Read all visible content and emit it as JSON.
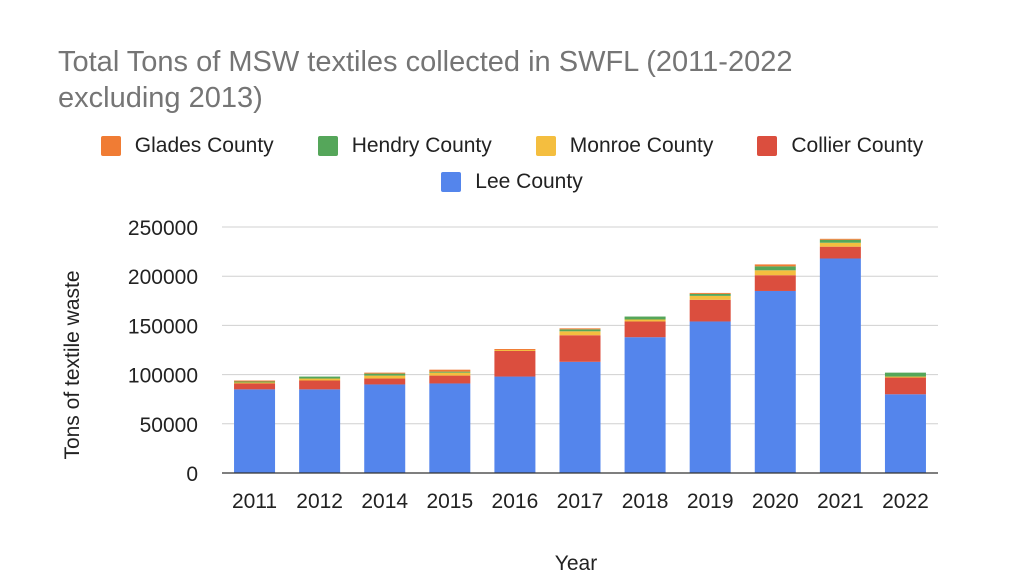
{
  "chart_data": {
    "type": "bar",
    "stacked": true,
    "title": "Total Tons of MSW textiles collected in SWFL (2011-2022 excluding 2013)",
    "xlabel": "Year",
    "ylabel": "Tons of textile waste",
    "ylim": [
      0,
      250000
    ],
    "yticks": [
      0,
      50000,
      100000,
      150000,
      200000,
      250000
    ],
    "grid": true,
    "legend_position": "top",
    "categories": [
      "2011",
      "2012",
      "2014",
      "2015",
      "2016",
      "2017",
      "2018",
      "2019",
      "2020",
      "2021",
      "2022"
    ],
    "series": [
      {
        "name": "Lee County",
        "color": "#5485EC",
        "values": [
          85000,
          85000,
          90000,
          91000,
          98000,
          113000,
          138000,
          154000,
          185000,
          218000,
          80000
        ]
      },
      {
        "name": "Collier County",
        "color": "#DB4E3E",
        "values": [
          6000,
          9000,
          6000,
          8000,
          26000,
          27000,
          16000,
          22000,
          16000,
          12000,
          17000
        ]
      },
      {
        "name": "Monroe County",
        "color": "#F4BE3F",
        "values": [
          1000,
          2000,
          3000,
          3000,
          1000,
          4000,
          2000,
          4000,
          5000,
          4000,
          1000
        ]
      },
      {
        "name": "Hendry County",
        "color": "#55A65A",
        "values": [
          1000,
          2000,
          2000,
          1000,
          0,
          2000,
          3000,
          2000,
          4000,
          3000,
          4000
        ]
      },
      {
        "name": "Glades County",
        "color": "#F07C34",
        "values": [
          1000,
          0,
          1000,
          2000,
          1000,
          1000,
          0,
          1000,
          2000,
          1000,
          0
        ]
      }
    ],
    "legend_order": [
      "Glades County",
      "Hendry County",
      "Monroe County",
      "Collier County",
      "Lee County"
    ]
  }
}
